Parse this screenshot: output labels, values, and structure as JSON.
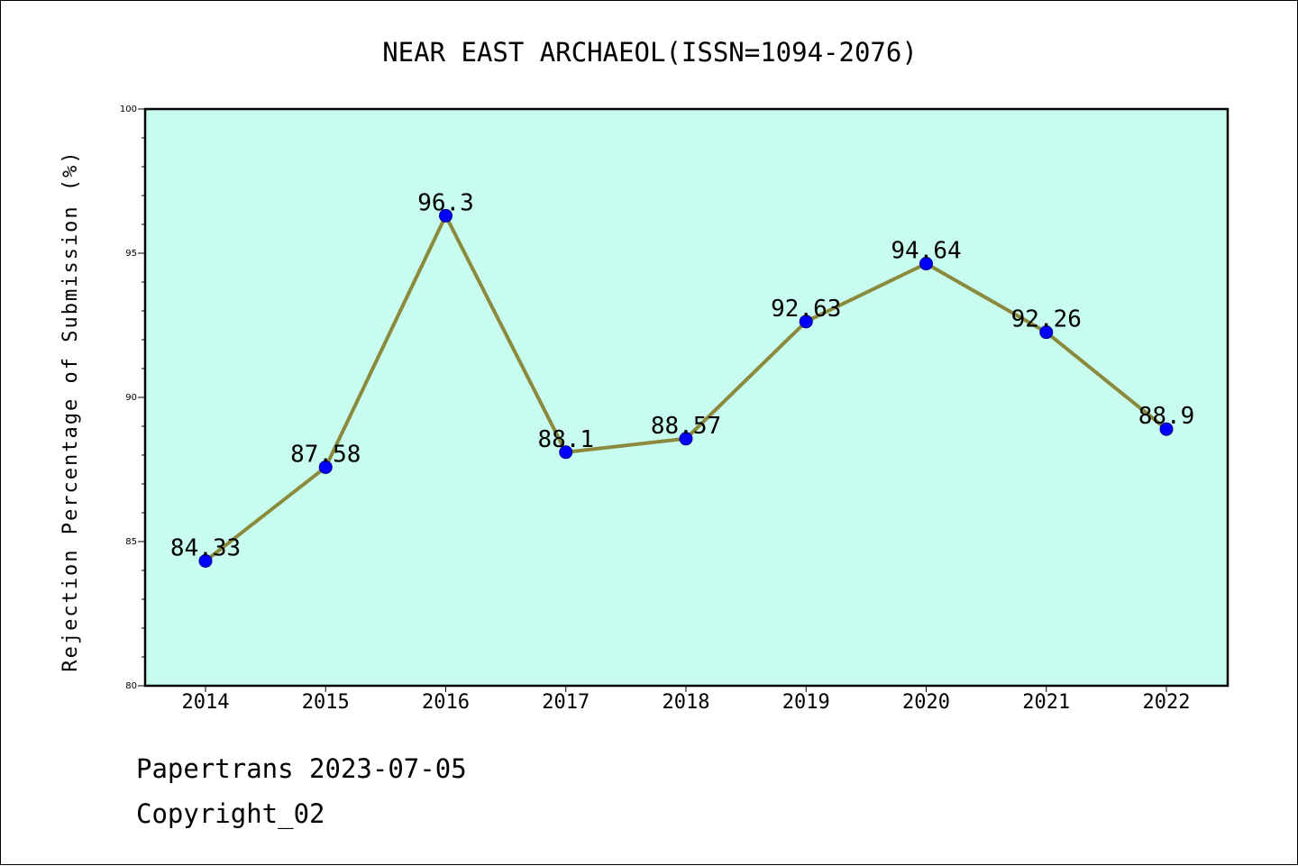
{
  "chart_data": {
    "type": "line",
    "title": "NEAR EAST ARCHAEOL(ISSN=1094-2076)",
    "xlabel": "",
    "ylabel": "Rejection Percentage of Submission (%)",
    "categories": [
      "2014",
      "2015",
      "2016",
      "2017",
      "2018",
      "2019",
      "2020",
      "2021",
      "2022"
    ],
    "series": [
      {
        "values": [
          84.33,
          87.58,
          96.3,
          88.1,
          88.57,
          92.63,
          94.64,
          92.26,
          88.9
        ],
        "data_labels": [
          "84.33",
          "87.58",
          "96.3",
          "88.1",
          "88.57",
          "92.63",
          "94.64",
          "92.26",
          "88.9"
        ],
        "line_color": "#8b8a3c",
        "marker_color": "#0000ff"
      }
    ],
    "ylim": [
      80,
      100
    ],
    "yticks": [
      "80",
      "85",
      "90",
      "95",
      "100"
    ],
    "plot_background": "#c8fcee",
    "grid": false,
    "legend": "none"
  },
  "footer": {
    "source": "Papertrans 2023-07-05",
    "copyright": "Copyright_02"
  }
}
